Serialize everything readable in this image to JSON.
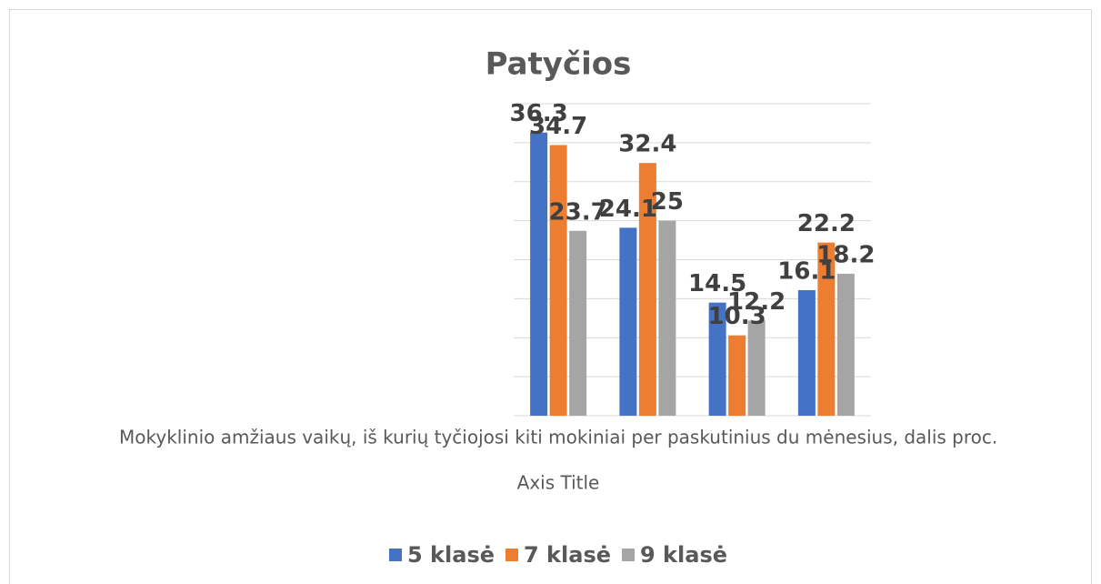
{
  "chart_data": {
    "type": "bar",
    "title": "Patyčios",
    "categories": [
      "Mokyklinio amžiaus vaikų, iš kurių tyčiojosi kiti mokiniai per paskutinius du mėnesius, dalis proc.",
      null,
      null,
      null
    ],
    "x_label": "Axis Title",
    "series": [
      {
        "name": "5 klasė",
        "color": "#4472c4",
        "values": [
          36.3,
          24.1,
          14.5,
          16.1
        ]
      },
      {
        "name": "7 klasė",
        "color": "#ed7d31",
        "values": [
          34.7,
          32.4,
          10.3,
          22.2
        ]
      },
      {
        "name": "9 klasė",
        "color": "#a5a5a5",
        "values": [
          23.7,
          25,
          12.2,
          18.2
        ]
      }
    ],
    "ylim": [
      0,
      40
    ],
    "yticks": [
      0,
      5,
      10,
      15,
      20,
      25,
      30,
      35,
      40
    ],
    "grid": true,
    "legend": "bottom"
  }
}
